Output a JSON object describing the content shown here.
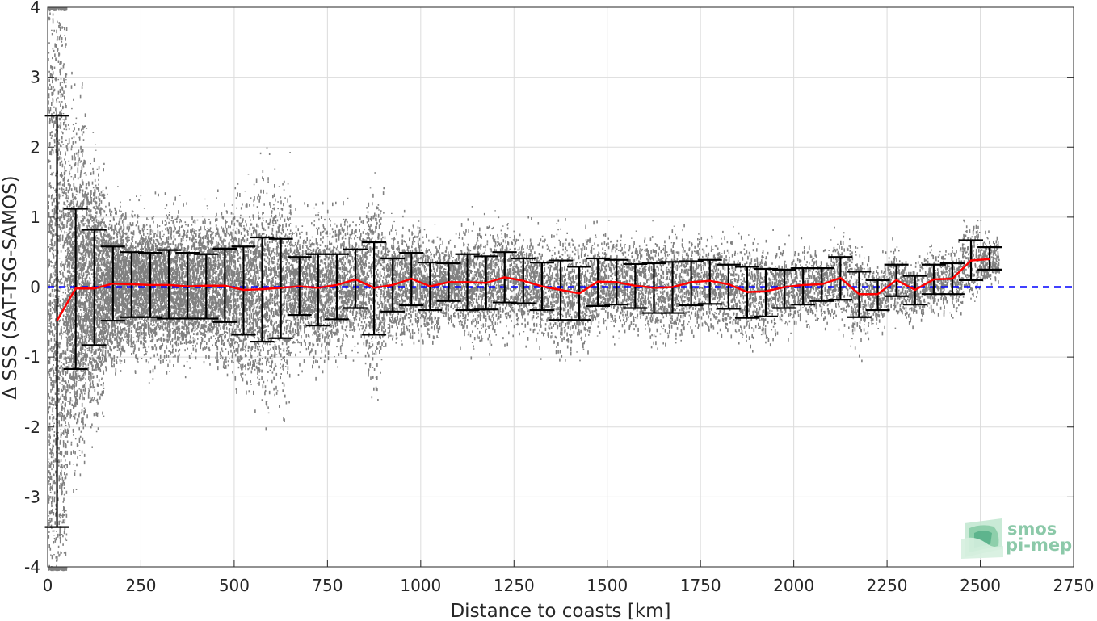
{
  "chart_data": {
    "type": "scatter",
    "xlabel": "Distance to coasts [km]",
    "ylabel": "Δ SSS (SAT-TSG-SAMOS)",
    "xlim": [
      0,
      2750
    ],
    "ylim": [
      -4,
      4
    ],
    "x_ticks": [
      "0",
      "250",
      "500",
      "750",
      "1000",
      "1250",
      "1500",
      "1750",
      "2000",
      "2250",
      "2500",
      "2750"
    ],
    "y_ticks": [
      "-4",
      "-3",
      "-2",
      "-1",
      "0",
      "1",
      "2",
      "3",
      "4"
    ],
    "grid": true,
    "reference_line": {
      "y": 0,
      "style": "dashed",
      "color": "#0000ff"
    },
    "series": [
      {
        "kind": "binned_mean_with_std",
        "line_color": "#ff0000",
        "errorbar_color": "#000000",
        "x": [
          25,
          75,
          125,
          175,
          225,
          275,
          325,
          375,
          425,
          475,
          525,
          575,
          625,
          675,
          725,
          775,
          825,
          875,
          925,
          975,
          1025,
          1075,
          1125,
          1175,
          1225,
          1275,
          1325,
          1375,
          1425,
          1475,
          1525,
          1575,
          1625,
          1675,
          1725,
          1775,
          1825,
          1875,
          1925,
          1975,
          2025,
          2075,
          2125,
          2175,
          2225,
          2275,
          2325,
          2375,
          2425,
          2475,
          2525
        ],
        "mean": [
          -0.48,
          -0.02,
          -0.02,
          0.05,
          0.04,
          0.03,
          0.03,
          0.01,
          0.02,
          0.02,
          -0.04,
          -0.03,
          -0.01,
          0.01,
          -0.01,
          0.03,
          0.11,
          -0.01,
          0.03,
          0.12,
          0.01,
          0.07,
          0.07,
          0.06,
          0.14,
          0.09,
          0.01,
          -0.04,
          -0.09,
          0.08,
          0.07,
          0.02,
          -0.01,
          0.0,
          0.07,
          0.09,
          0.04,
          -0.07,
          -0.06,
          0.0,
          0.03,
          0.04,
          0.13,
          -0.1,
          -0.1,
          0.1,
          -0.04,
          0.11,
          0.12,
          0.38,
          0.4
        ],
        "lower": [
          -3.43,
          -1.17,
          -0.83,
          -0.48,
          -0.43,
          -0.43,
          -0.45,
          -0.45,
          -0.45,
          -0.5,
          -0.68,
          -0.78,
          -0.73,
          -0.4,
          -0.55,
          -0.46,
          -0.3,
          -0.68,
          -0.35,
          -0.26,
          -0.33,
          -0.2,
          -0.33,
          -0.32,
          -0.22,
          -0.23,
          -0.33,
          -0.47,
          -0.47,
          -0.27,
          -0.25,
          -0.3,
          -0.37,
          -0.37,
          -0.26,
          -0.24,
          -0.31,
          -0.44,
          -0.42,
          -0.3,
          -0.25,
          -0.2,
          -0.18,
          -0.43,
          -0.33,
          -0.13,
          -0.25,
          -0.1,
          -0.1,
          0.1,
          0.25
        ],
        "upper": [
          2.45,
          1.12,
          0.82,
          0.58,
          0.5,
          0.49,
          0.53,
          0.49,
          0.47,
          0.55,
          0.58,
          0.71,
          0.69,
          0.43,
          0.47,
          0.47,
          0.54,
          0.64,
          0.41,
          0.49,
          0.35,
          0.34,
          0.47,
          0.44,
          0.5,
          0.41,
          0.35,
          0.38,
          0.29,
          0.41,
          0.39,
          0.33,
          0.34,
          0.36,
          0.37,
          0.39,
          0.32,
          0.29,
          0.26,
          0.25,
          0.27,
          0.27,
          0.43,
          0.22,
          0.1,
          0.32,
          0.16,
          0.32,
          0.34,
          0.67,
          0.57
        ]
      }
    ]
  },
  "logo": {
    "line1": "smos",
    "line2": "pi-mep"
  }
}
